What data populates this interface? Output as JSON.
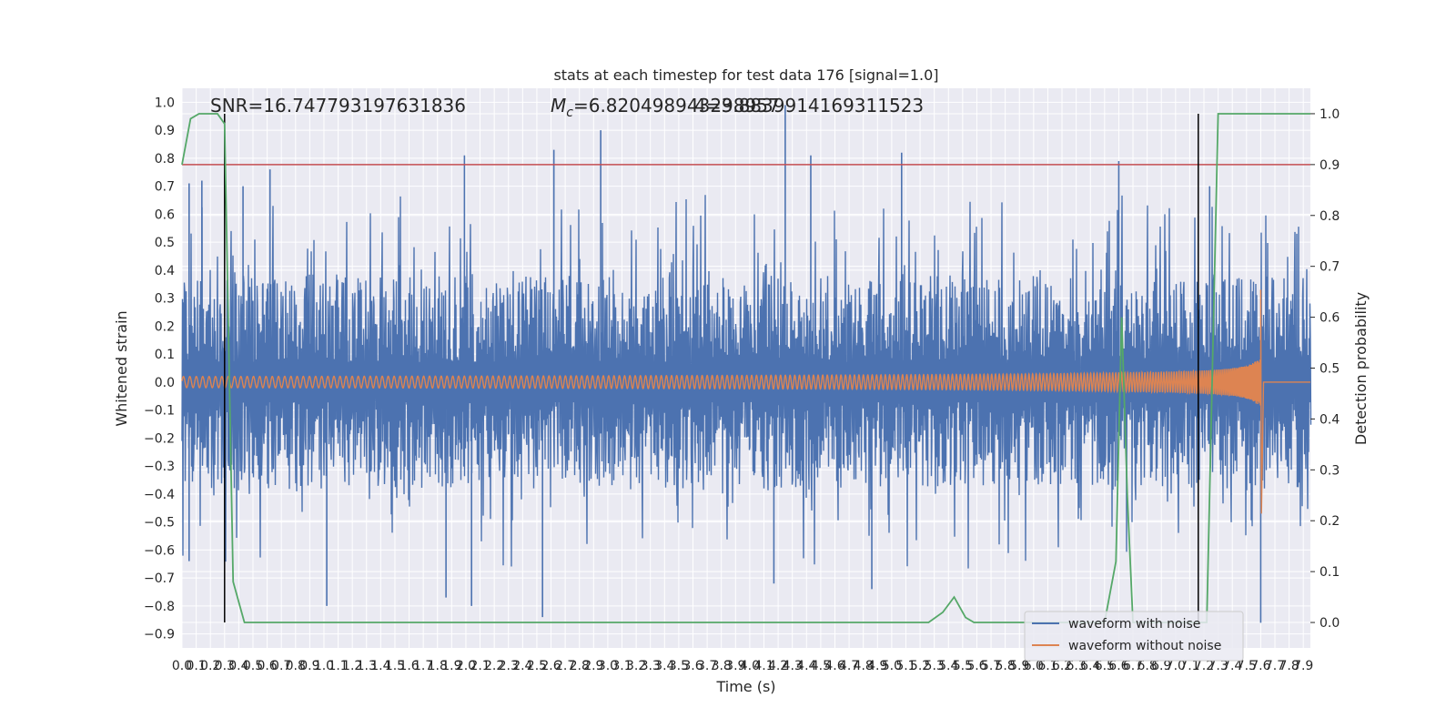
{
  "chart_data": {
    "type": "line",
    "title": "stats at each timestep for test data 176 [signal=1.0]",
    "xlabel": "Time (s)",
    "ylabel": "Whitened strain",
    "ylabel_right": "Detection probability",
    "xlim": [
      0.0,
      7.95
    ],
    "ylim": [
      -0.95,
      1.05
    ],
    "ylim_right": [
      -0.05,
      1.05
    ],
    "x_ticks": [
      0.0,
      0.1,
      0.2,
      0.3,
      0.4,
      0.5,
      0.6,
      0.7,
      0.8,
      0.9,
      1.0,
      1.1,
      1.2,
      1.3,
      1.4,
      1.5,
      1.6,
      1.7,
      1.8,
      1.9,
      2.0,
      2.1,
      2.2,
      2.3,
      2.4,
      2.5,
      2.6,
      2.7,
      2.8,
      2.9,
      3.0,
      3.1,
      3.2,
      3.3,
      3.4,
      3.5,
      3.6,
      3.7,
      3.8,
      3.9,
      4.0,
      4.1,
      4.2,
      4.3,
      4.4,
      4.5,
      4.6,
      4.7,
      4.8,
      4.9,
      5.0,
      5.1,
      5.2,
      5.3,
      5.4,
      5.5,
      5.6,
      5.7,
      5.8,
      5.9,
      6.0,
      6.1,
      6.2,
      6.3,
      6.4,
      6.5,
      6.6,
      6.7,
      6.8,
      6.9,
      7.0,
      7.1,
      7.2,
      7.3,
      7.4,
      7.5,
      7.6,
      7.7,
      7.8,
      7.9
    ],
    "x_tick_labels": [
      "0.0",
      "0.1",
      "0.2",
      "0.3",
      "0.4",
      "0.5",
      "0.6",
      "0.7",
      "0.8",
      "0.9",
      "1.0",
      "1.1",
      "1.2",
      "1.3",
      "1.4",
      "1.5",
      "1.6",
      "1.7",
      "1.8",
      "1.9",
      "2.0",
      "2.1",
      "2.2",
      "2.3",
      "2.4",
      "2.5",
      "2.6",
      "2.7",
      "2.8",
      "2.9",
      "3.0",
      "3.1",
      "3.2",
      "3.3",
      "3.4",
      "3.5",
      "3.6",
      "3.7",
      "3.8",
      "3.9",
      "4.0",
      "4.1",
      "4.2",
      "4.3",
      "4.4",
      "4.5",
      "4.6",
      "4.7",
      "4.8",
      "4.9",
      "5.0",
      "5.1",
      "5.2",
      "5.3",
      "5.4",
      "5.5",
      "5.6",
      "5.7",
      "5.8",
      "5.9",
      "6.0",
      "6.1",
      "6.2",
      "6.3",
      "6.4",
      "6.5",
      "6.6",
      "6.7",
      "6.8",
      "6.9",
      "7.0",
      "7.1",
      "7.2",
      "7.3",
      "7.4",
      "7.5",
      "7.6",
      "7.7",
      "7.8",
      "7.9"
    ],
    "y_ticks": [
      -0.9,
      -0.8,
      -0.7,
      -0.6,
      -0.5,
      -0.4,
      -0.3,
      -0.2,
      -0.1,
      0.0,
      0.1,
      0.2,
      0.3,
      0.4,
      0.5,
      0.6,
      0.7,
      0.8,
      0.9,
      1.0
    ],
    "y_tick_labels": [
      "−0.9",
      "−0.8",
      "−0.7",
      "−0.6",
      "−0.5",
      "−0.4",
      "−0.3",
      "−0.2",
      "−0.1",
      "0.0",
      "0.1",
      "0.2",
      "0.3",
      "0.4",
      "0.5",
      "0.6",
      "0.7",
      "0.8",
      "0.9",
      "1.0"
    ],
    "y_ticks_right": [
      0.0,
      0.1,
      0.2,
      0.3,
      0.4,
      0.5,
      0.6,
      0.7,
      0.8,
      0.9,
      1.0
    ],
    "y_tick_labels_right": [
      "0.0",
      "0.1",
      "0.2",
      "0.3",
      "0.4",
      "0.5",
      "0.6",
      "0.7",
      "0.8",
      "0.9",
      "1.0"
    ],
    "grid": true,
    "legend": "bottom-right",
    "annotations": {
      "snr": "SNR=16.747793197631836",
      "mc_symbol": "M",
      "mc_sub": "c",
      "mc_value": "=6.820498943298957",
      "overlap": "4=3.8839914169311523"
    },
    "series": [
      {
        "name": "waveform with noise",
        "color": "#4c72b0",
        "axis": "left",
        "description_values": {
          "band_min": -0.87,
          "band_max": 1.0,
          "typical_amplitude": 0.3
        },
        "peaks": [
          {
            "x": 0.05,
            "y": 0.71
          },
          {
            "x": 0.14,
            "y": 0.72
          },
          {
            "x": 0.43,
            "y": 0.7
          },
          {
            "x": 0.62,
            "y": 0.76
          },
          {
            "x": 1.99,
            "y": 0.81
          },
          {
            "x": 2.62,
            "y": 0.83
          },
          {
            "x": 2.95,
            "y": 0.9
          },
          {
            "x": 4.25,
            "y": 0.99
          },
          {
            "x": 4.43,
            "y": 0.81
          },
          {
            "x": 5.07,
            "y": 0.82
          },
          {
            "x": 6.6,
            "y": 0.79
          },
          {
            "x": 7.24,
            "y": 0.7
          },
          {
            "x": 0.05,
            "y": -0.64
          },
          {
            "x": 1.02,
            "y": -0.8
          },
          {
            "x": 1.86,
            "y": -0.77
          },
          {
            "x": 2.04,
            "y": -0.8
          },
          {
            "x": 2.54,
            "y": -0.84
          },
          {
            "x": 4.17,
            "y": -0.72
          },
          {
            "x": 4.86,
            "y": -0.74
          },
          {
            "x": 7.6,
            "y": -0.86
          }
        ]
      },
      {
        "name": "waveform without noise",
        "color": "#dd8452",
        "axis": "left",
        "chirp": {
          "start_amplitude": 0.02,
          "merger_time": 7.6,
          "merger_peak": 0.33,
          "merger_trough": -0.47,
          "ringdown_end": 7.95
        }
      },
      {
        "name": "",
        "color": "#55a868",
        "axis": "right",
        "x": [
          0.0,
          0.06,
          0.12,
          0.25,
          0.3,
          0.36,
          0.44,
          0.5,
          1.0,
          2.0,
          3.0,
          4.0,
          5.0,
          5.26,
          5.36,
          5.44,
          5.52,
          5.58,
          5.7,
          6.0,
          6.5,
          6.58,
          6.62,
          6.66,
          6.7,
          6.75,
          7.0,
          7.1,
          7.16,
          7.22,
          7.3,
          7.4,
          7.95
        ],
        "y": [
          0.9,
          0.99,
          1.0,
          1.0,
          0.98,
          0.08,
          0.0,
          0.0,
          0.0,
          0.0,
          0.0,
          0.0,
          0.0,
          0.0,
          0.02,
          0.05,
          0.01,
          0.0,
          0.0,
          0.0,
          0.0,
          0.12,
          0.6,
          0.25,
          0.0,
          0.0,
          0.0,
          0.0,
          0.0,
          0.0,
          1.0,
          1.0,
          1.0
        ]
      }
    ],
    "reference_lines": {
      "threshold_right": 0.9,
      "threshold_color": "#c44e52",
      "vertical_x": [
        0.3,
        7.16
      ],
      "vertical_color": "#000000"
    }
  }
}
